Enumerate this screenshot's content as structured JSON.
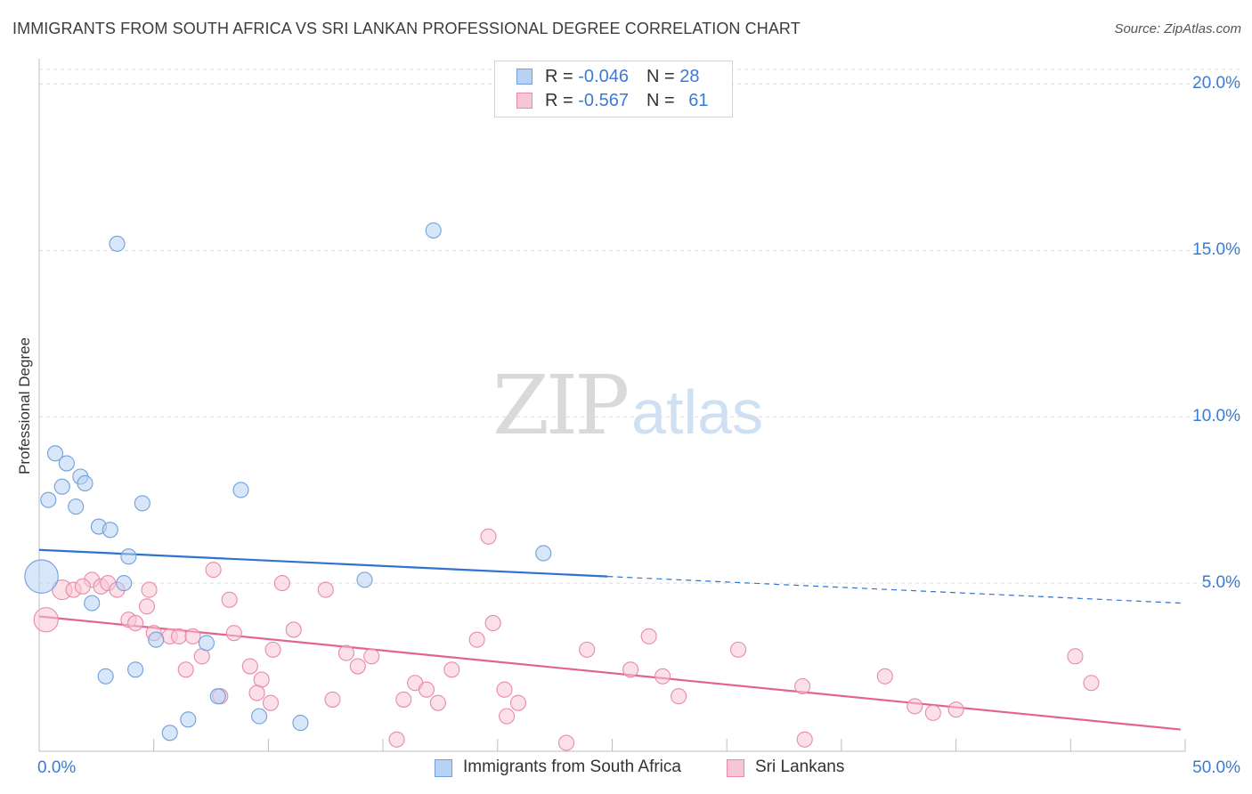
{
  "title": "IMMIGRANTS FROM SOUTH AFRICA VS SRI LANKAN PROFESSIONAL DEGREE CORRELATION CHART",
  "source": "Source: ZipAtlas.com",
  "watermark": {
    "zip": "ZIP",
    "atlas": "atlas"
  },
  "legend": {
    "blue": {
      "r_label": "R = ",
      "r": "-0.046",
      "n_label": "N = ",
      "n": "28"
    },
    "pink": {
      "r_label": "R = ",
      "r": "-0.567",
      "n_label": "N = ",
      "n": "61"
    }
  },
  "colors": {
    "blue_fill": "#b7d2f3",
    "blue_stroke": "#6fa0dc",
    "blue_line": "#2f72d0",
    "pink_fill": "#f7c6d5",
    "pink_stroke": "#e88aa8",
    "pink_line": "#e2638f",
    "tick_text": "#3a7bd5",
    "grid": "#dcdcdc"
  },
  "chart_data": {
    "type": "scatter",
    "title": "IMMIGRANTS FROM SOUTH AFRICA VS SRI LANKAN PROFESSIONAL DEGREE CORRELATION CHART",
    "xlabel": "",
    "ylabel": "Professional Degree",
    "xlim": [
      0,
      50
    ],
    "ylim": [
      0,
      20.6
    ],
    "x_tick_labels": {
      "left": "0.0%",
      "right": "50.0%"
    },
    "y_ticks": [
      {
        "value": 5,
        "label": "5.0%"
      },
      {
        "value": 10,
        "label": "10.0%"
      },
      {
        "value": 15,
        "label": "15.0%"
      },
      {
        "value": 20,
        "label": "20.0%"
      }
    ],
    "series": [
      {
        "name": "Immigrants from South Africa",
        "color": "blue",
        "points": [
          [
            0.1,
            5.2,
            2.2
          ],
          [
            3.4,
            15.2,
            1
          ],
          [
            17.2,
            15.6,
            1
          ],
          [
            0.7,
            8.9,
            1
          ],
          [
            1.2,
            8.6,
            1
          ],
          [
            1.0,
            7.9,
            1
          ],
          [
            1.8,
            8.2,
            1
          ],
          [
            2.0,
            8.0,
            1
          ],
          [
            0.4,
            7.5,
            1
          ],
          [
            1.6,
            7.3,
            1
          ],
          [
            4.5,
            7.4,
            1
          ],
          [
            8.8,
            7.8,
            1
          ],
          [
            2.6,
            6.7,
            1
          ],
          [
            3.1,
            6.6,
            1
          ],
          [
            22.0,
            5.9,
            1
          ],
          [
            3.9,
            5.8,
            1
          ],
          [
            3.7,
            5.0,
            1
          ],
          [
            14.2,
            5.1,
            1
          ],
          [
            2.3,
            4.4,
            1
          ],
          [
            5.1,
            3.3,
            1
          ],
          [
            7.3,
            3.2,
            1
          ],
          [
            4.2,
            2.4,
            1
          ],
          [
            2.9,
            2.2,
            1
          ],
          [
            7.8,
            1.6,
            1
          ],
          [
            6.5,
            0.9,
            1
          ],
          [
            9.6,
            1.0,
            1
          ],
          [
            11.4,
            0.8,
            1
          ],
          [
            5.7,
            0.5,
            1
          ]
        ],
        "trend": {
          "x0": 0,
          "y0": 6.0,
          "x1": 24.8,
          "y1": 5.2,
          "dash_x1": 49.8,
          "dash_y1": 4.4
        }
      },
      {
        "name": "Sri Lankans",
        "color": "pink",
        "points": [
          [
            0.3,
            3.9,
            1.6
          ],
          [
            1.0,
            4.8,
            1.3
          ],
          [
            1.5,
            4.8,
            1
          ],
          [
            2.3,
            5.1,
            1
          ],
          [
            2.7,
            4.9,
            1
          ],
          [
            3.0,
            5.0,
            1
          ],
          [
            3.4,
            4.8,
            1
          ],
          [
            1.9,
            4.9,
            1
          ],
          [
            4.8,
            4.8,
            1
          ],
          [
            7.6,
            5.4,
            1
          ],
          [
            10.6,
            5.0,
            1
          ],
          [
            12.5,
            4.8,
            1
          ],
          [
            4.7,
            4.3,
            1
          ],
          [
            8.3,
            4.5,
            1
          ],
          [
            3.9,
            3.9,
            1
          ],
          [
            4.2,
            3.8,
            1
          ],
          [
            5.0,
            3.5,
            1
          ],
          [
            5.7,
            3.4,
            1
          ],
          [
            6.1,
            3.4,
            1
          ],
          [
            6.7,
            3.4,
            1
          ],
          [
            8.5,
            3.5,
            1
          ],
          [
            11.1,
            3.6,
            1
          ],
          [
            7.1,
            2.8,
            1
          ],
          [
            10.2,
            3.0,
            1
          ],
          [
            6.4,
            2.4,
            1
          ],
          [
            9.2,
            2.5,
            1
          ],
          [
            13.4,
            2.9,
            1
          ],
          [
            14.5,
            2.8,
            1
          ],
          [
            19.6,
            6.4,
            1
          ],
          [
            19.8,
            3.8,
            1
          ],
          [
            19.1,
            3.3,
            1
          ],
          [
            13.9,
            2.5,
            1
          ],
          [
            18.0,
            2.4,
            1
          ],
          [
            9.7,
            2.1,
            1
          ],
          [
            16.4,
            2.0,
            1
          ],
          [
            7.9,
            1.6,
            1
          ],
          [
            9.5,
            1.7,
            1
          ],
          [
            16.9,
            1.8,
            1
          ],
          [
            20.3,
            1.8,
            1
          ],
          [
            12.8,
            1.5,
            1
          ],
          [
            10.1,
            1.4,
            1
          ],
          [
            15.9,
            1.5,
            1
          ],
          [
            17.4,
            1.4,
            1
          ],
          [
            20.9,
            1.4,
            1
          ],
          [
            23.9,
            3.0,
            1
          ],
          [
            26.6,
            3.4,
            1
          ],
          [
            25.8,
            2.4,
            1
          ],
          [
            27.2,
            2.2,
            1
          ],
          [
            27.9,
            1.6,
            1
          ],
          [
            20.4,
            1.0,
            1
          ],
          [
            30.5,
            3.0,
            1
          ],
          [
            33.3,
            1.9,
            1
          ],
          [
            36.9,
            2.2,
            1
          ],
          [
            38.2,
            1.3,
            1
          ],
          [
            39.0,
            1.1,
            1
          ],
          [
            40.0,
            1.2,
            1
          ],
          [
            45.2,
            2.8,
            1
          ],
          [
            45.9,
            2.0,
            1
          ],
          [
            15.6,
            0.3,
            1
          ],
          [
            23.0,
            0.2,
            1
          ],
          [
            33.4,
            0.3,
            1
          ]
        ],
        "trend": {
          "x0": 0,
          "y0": 4.0,
          "x1": 49.8,
          "y1": 0.6
        }
      }
    ]
  },
  "bottom_legend": [
    {
      "label": "Immigrants from South Africa",
      "color": "blue"
    },
    {
      "label": "Sri Lankans",
      "color": "pink"
    }
  ]
}
